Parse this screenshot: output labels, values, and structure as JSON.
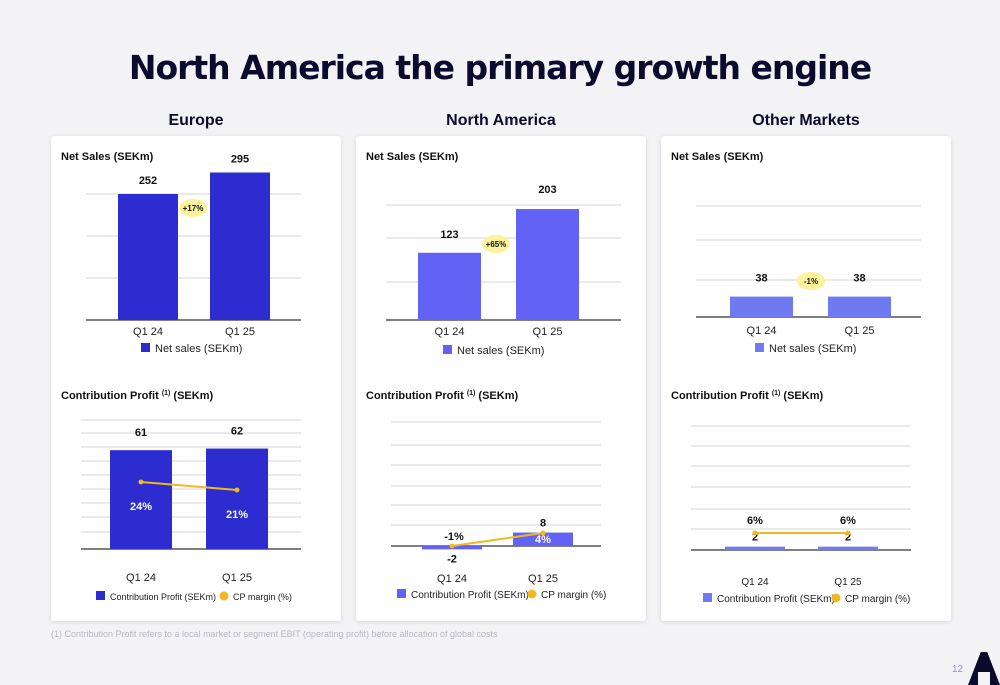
{
  "title": "North America the primary growth engine",
  "footnote": "(1) Contribution Profit refers to a local market or segment EBIT (operating profit) before allocation of global costs",
  "page_number": "12",
  "columns": [
    {
      "header": "Europe"
    },
    {
      "header": "North America"
    },
    {
      "header": "Other Markets"
    }
  ],
  "colors": {
    "europe_bar": "#2c2cd0",
    "na_bar": "#6262f5",
    "other_bar": "#6f79f0",
    "cp_line": "#f2b81f",
    "badge": "#fbf29b",
    "grid": "#d6d6d6"
  },
  "chart_data": [
    {
      "type": "bar",
      "region": "Europe",
      "title": "Net Sales (SEKm)",
      "categories": [
        "Q1 24",
        "Q1 25"
      ],
      "series": [
        {
          "name": "Net sales (SEKm)",
          "values": [
            252,
            295
          ]
        }
      ],
      "value_labels": [
        "252",
        "295"
      ],
      "growth_label": "+17%",
      "ylim": [
        0,
        300
      ],
      "grid": true,
      "legend": "bottom"
    },
    {
      "type": "bar",
      "region": "North America",
      "title": "Net Sales (SEKm)",
      "categories": [
        "Q1 24",
        "Q1 25"
      ],
      "series": [
        {
          "name": "Net sales (SEKm)",
          "values": [
            123,
            203
          ]
        }
      ],
      "value_labels": [
        "123",
        "203"
      ],
      "growth_label": "+65%",
      "ylim": [
        0,
        300
      ],
      "grid": true,
      "legend": "bottom"
    },
    {
      "type": "bar",
      "region": "Other Markets",
      "title": "Net Sales (SEKm)",
      "categories": [
        "Q1 24",
        "Q1 25"
      ],
      "series": [
        {
          "name": "Net sales (SEKm)",
          "values": [
            38,
            38
          ]
        }
      ],
      "value_labels": [
        "38",
        "38"
      ],
      "growth_label": "-1%",
      "ylim": [
        0,
        300
      ],
      "grid": true,
      "legend": "bottom"
    },
    {
      "type": "bar",
      "region": "Europe",
      "title": "Contribution Profit",
      "title_sup": "(1)",
      "title_suffix": "(SEKm)",
      "categories": [
        "Q1 24",
        "Q1 25"
      ],
      "series": [
        {
          "name": "Contribution Profit (SEKm)",
          "values": [
            61,
            62
          ]
        },
        {
          "name": "CP margin (%)",
          "values": [
            24,
            21
          ]
        }
      ],
      "value_labels": [
        "61",
        "62"
      ],
      "margin_labels": [
        "24%",
        "21%"
      ],
      "ylim": [
        -10,
        65
      ],
      "grid": true,
      "legend": "bottom"
    },
    {
      "type": "bar",
      "region": "North America",
      "title": "Contribution Profit",
      "title_sup": "(1)",
      "title_suffix": "(SEKm)",
      "categories": [
        "Q1 24",
        "Q1 25"
      ],
      "series": [
        {
          "name": "Contribution Profit (SEKm)",
          "values": [
            -2,
            8
          ]
        },
        {
          "name": "CP margin (%)",
          "values": [
            -1,
            4
          ]
        }
      ],
      "value_labels": [
        "-2",
        "8"
      ],
      "margin_labels": [
        "-1%",
        "4%"
      ],
      "ylim": [
        -10,
        65
      ],
      "grid": true,
      "legend": "bottom"
    },
    {
      "type": "bar",
      "region": "Other Markets",
      "title": "Contribution Profit",
      "title_sup": "(1)",
      "title_suffix": "(SEKm)",
      "categories": [
        "Q1 24",
        "Q1 25"
      ],
      "series": [
        {
          "name": "Contribution Profit (SEKm)",
          "values": [
            2,
            2
          ]
        },
        {
          "name": "CP margin (%)",
          "values": [
            6,
            6
          ]
        }
      ],
      "value_labels": [
        "2",
        "2"
      ],
      "margin_labels": [
        "6%",
        "6%"
      ],
      "ylim": [
        -10,
        65
      ],
      "grid": true,
      "legend": "bottom"
    }
  ]
}
